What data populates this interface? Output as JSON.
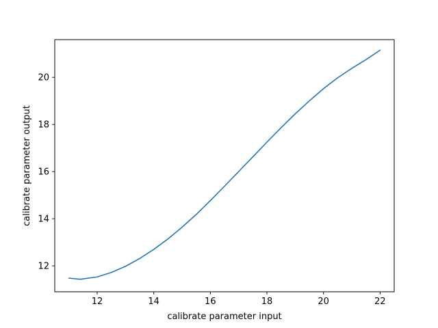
{
  "chart_data": {
    "type": "line",
    "xlabel": "calibrate parameter input",
    "ylabel": "calibrate parameter output",
    "xlim": [
      10.5,
      22.5
    ],
    "ylim": [
      10.9,
      21.6
    ],
    "xticks": [
      12,
      14,
      16,
      18,
      20,
      22
    ],
    "yticks": [
      12,
      14,
      16,
      18,
      20
    ],
    "grid": false,
    "series": [
      {
        "color": "#1f77b4",
        "x": [
          11.0,
          11.4,
          12.0,
          12.5,
          13.0,
          13.5,
          14.0,
          14.5,
          15.0,
          15.5,
          16.0,
          16.5,
          17.0,
          17.5,
          18.0,
          18.5,
          19.0,
          19.5,
          20.0,
          20.5,
          21.0,
          21.5,
          22.0
        ],
        "y": [
          11.48,
          11.43,
          11.53,
          11.72,
          11.98,
          12.31,
          12.7,
          13.14,
          13.64,
          14.18,
          14.77,
          15.38,
          16.0,
          16.62,
          17.25,
          17.86,
          18.45,
          19.0,
          19.52,
          19.98,
          20.38,
          20.75,
          21.15
        ]
      }
    ]
  }
}
